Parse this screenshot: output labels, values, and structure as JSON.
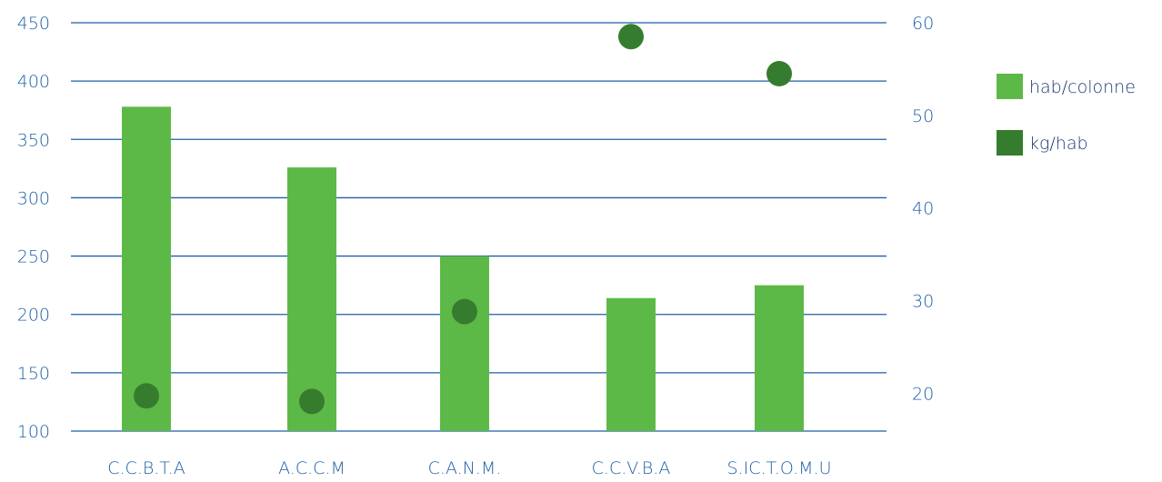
{
  "chart_data": {
    "type": "bar",
    "categories": [
      "C.C.B.T.A",
      "A.C.C.M",
      "C.A.N.M.",
      "C.C.V.B.A",
      "S.IC.T.O.M.U"
    ],
    "series": [
      {
        "name": "hab/colonne",
        "type": "bar",
        "axis": "left",
        "color": "#5db947",
        "values": [
          378,
          326,
          250,
          214,
          225
        ]
      },
      {
        "name": "kg/hab",
        "type": "scatter",
        "axis": "right",
        "color": "#367c2e",
        "values": [
          19.7,
          19.1,
          28.8,
          58.5,
          54.5
        ]
      }
    ],
    "y_left": {
      "ylim": [
        100,
        450
      ],
      "ticks": [
        "100",
        "150",
        "200",
        "250",
        "300",
        "350",
        "400",
        "450"
      ]
    },
    "y_right": {
      "ylim": [
        15.9,
        60
      ],
      "ticks": [
        "20",
        "30",
        "40",
        "50",
        "60"
      ]
    },
    "grid": true,
    "legend": "right",
    "colors": {
      "grid": "#1f5fa6",
      "text": "#1f5fa6",
      "legend_text": "#1a3a6e"
    }
  }
}
